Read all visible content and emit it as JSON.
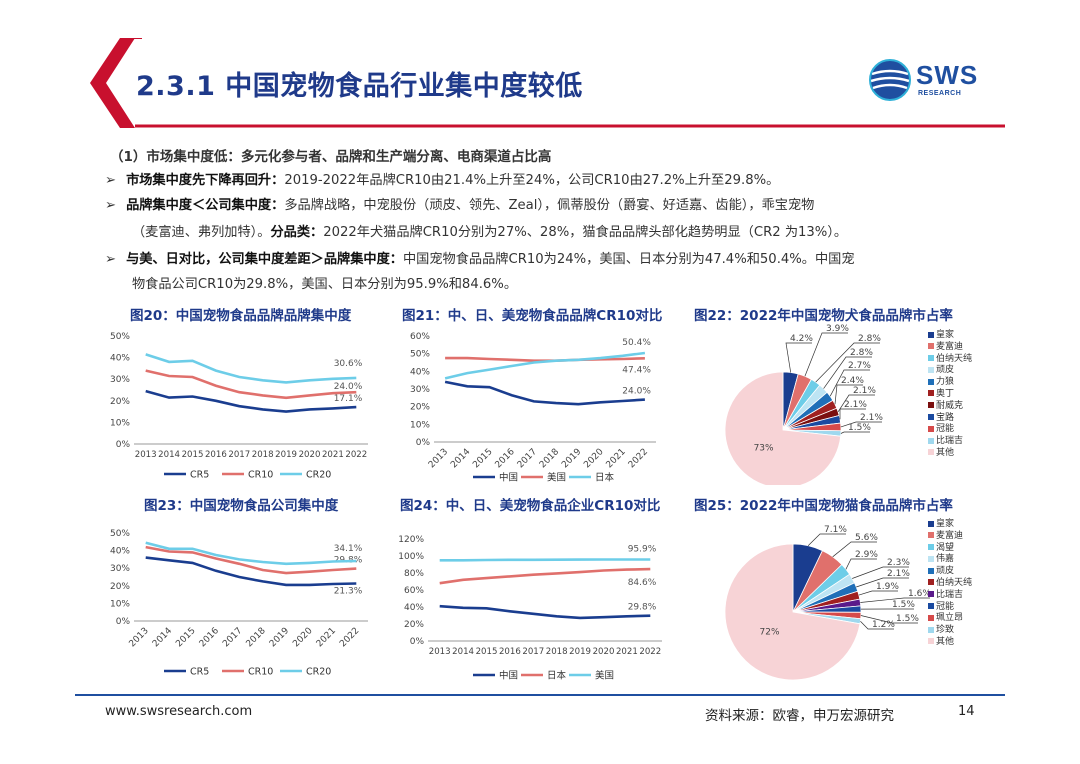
{
  "header": {
    "title": "2.3.1 中国宠物食品行业集中度较低",
    "logo": {
      "name": "SWS",
      "sub": "RESEARCH"
    },
    "colors": {
      "red": "#c8102e",
      "blue": "#1f4fa0",
      "title": "#1f3a8a"
    }
  },
  "body": {
    "section_title": "（1）市场集中度低：多元化参与者、品牌和生产端分离、电商渠道占比高",
    "bullets": [
      {
        "bold": "市场集中度先下降再回升：",
        "text": "2019-2022年品牌CR10由21.4%上升至24%，公司CR10由27.2%上升至29.8%。"
      },
      {
        "bold": "品牌集中度＜公司集中度：",
        "text": "多品牌战略，中宠股份（顽皮、领先、Zeal），佩蒂股份（爵宴、好适嘉、齿能），乖宝宠物"
      },
      {
        "bold": "",
        "text": "（麦富迪、弗列加特）。",
        "bold2": "分品类：",
        "text2": "2022年犬猫品牌CR10分别为27%、28%，猫食品品牌头部化趋势明显（CR2 为13%）。"
      },
      {
        "bold": "与美、日对比，公司集中度差距＞品牌集中度：",
        "text": "中国宠物食品品牌CR10为24%，美国、日本分别为47.4%和50.4%。中国宠"
      },
      {
        "bold": "",
        "text": "物食品公司CR10为29.8%，美国、日本分别为95.9%和84.6%。"
      }
    ]
  },
  "footer": {
    "url": "www.swsresearch.com",
    "source": "资料来源：欧睿，申万宏源研究",
    "page": "14"
  },
  "chart_data": [
    {
      "id": "fig20",
      "type": "line",
      "title": "图20：中国宠物食品品牌品牌集中度",
      "x": [
        "2013",
        "2014",
        "2015",
        "2016",
        "2017",
        "2018",
        "2019",
        "2020",
        "2021",
        "2022"
      ],
      "ylim": [
        0,
        50
      ],
      "yticks": [
        "0%",
        "10%",
        "20%",
        "30%",
        "40%",
        "50%"
      ],
      "xlabel_rotate": false,
      "series": [
        {
          "name": "CR5",
          "color": "#1a3d8f",
          "values": [
            24.5,
            21.5,
            22,
            20,
            17.5,
            16,
            15,
            16,
            16.5,
            17.1
          ]
        },
        {
          "name": "CR10",
          "color": "#e0706c",
          "values": [
            34,
            31.5,
            31,
            27,
            24,
            22.5,
            21.4,
            22.5,
            23.5,
            24.0
          ]
        },
        {
          "name": "CR20",
          "color": "#6dcde8",
          "values": [
            41.5,
            38,
            38.5,
            34,
            31,
            29.5,
            28.5,
            29.5,
            30.2,
            30.6
          ]
        }
      ],
      "end_labels": [
        "17.1%",
        "24.0%",
        "30.6%"
      ]
    },
    {
      "id": "fig21",
      "type": "line",
      "title": "图21：中、日、美宠物食品品牌CR10对比",
      "x": [
        "2013",
        "2014",
        "2015",
        "2016",
        "2017",
        "2018",
        "2019",
        "2020",
        "2021",
        "2022"
      ],
      "ylim": [
        0,
        60
      ],
      "yticks": [
        "0%",
        "10%",
        "20%",
        "30%",
        "40%",
        "50%",
        "60%"
      ],
      "xlabel_rotate": true,
      "series": [
        {
          "name": "中国",
          "color": "#1a3d8f",
          "values": [
            34,
            31.5,
            31,
            26.5,
            23,
            22,
            21.4,
            22.5,
            23.2,
            24.0
          ]
        },
        {
          "name": "美国",
          "color": "#e0706c",
          "values": [
            47.5,
            47.5,
            47,
            46.5,
            46,
            46,
            46.5,
            46.8,
            47,
            47.4
          ]
        },
        {
          "name": "日本",
          "color": "#6dcde8",
          "values": [
            36,
            39,
            41,
            43,
            45,
            46,
            46.5,
            47.5,
            48.8,
            50.4
          ]
        }
      ],
      "end_labels": [
        "24.0%",
        "47.4%",
        "50.4%"
      ]
    },
    {
      "id": "fig23",
      "type": "line",
      "title": "图23：中国宠物食品公司集中度",
      "x": [
        "2013",
        "2014",
        "2015",
        "2016",
        "2017",
        "2018",
        "2019",
        "2020",
        "2021",
        "2022"
      ],
      "ylim": [
        0,
        50
      ],
      "yticks": [
        "0%",
        "10%",
        "20%",
        "30%",
        "40%",
        "50%"
      ],
      "xlabel_rotate": true,
      "series": [
        {
          "name": "CR5",
          "color": "#1a3d8f",
          "values": [
            36,
            34.5,
            33,
            28.5,
            25,
            22.5,
            20.5,
            20.5,
            21,
            21.3
          ]
        },
        {
          "name": "CR10",
          "color": "#e0706c",
          "values": [
            42,
            39.5,
            39,
            35.5,
            32.5,
            29,
            27.2,
            28,
            29,
            29.8
          ]
        },
        {
          "name": "CR20",
          "color": "#6dcde8",
          "values": [
            44.5,
            41,
            41,
            37.5,
            35,
            33.5,
            32.5,
            33,
            33.8,
            34.1
          ]
        }
      ],
      "end_labels": [
        "21.3%",
        "29.8%",
        "34.1%"
      ]
    },
    {
      "id": "fig24",
      "type": "line",
      "title": "图24：中、日、美宠物食品企业CR10对比",
      "x": [
        "2013",
        "2014",
        "2015",
        "2016",
        "2017",
        "2018",
        "2019",
        "2020",
        "2021",
        "2022"
      ],
      "ylim": [
        0,
        120
      ],
      "yticks": [
        "0%",
        "20%",
        "40%",
        "60%",
        "80%",
        "100%",
        "120%"
      ],
      "xlabel_rotate": false,
      "series": [
        {
          "name": "中国",
          "color": "#1a3d8f",
          "values": [
            41,
            39,
            38.5,
            35,
            32,
            29,
            27.2,
            28,
            29,
            29.8
          ]
        },
        {
          "name": "日本",
          "color": "#e0706c",
          "values": [
            68,
            72,
            74,
            76,
            78,
            79.5,
            81,
            83,
            84,
            84.6
          ]
        },
        {
          "name": "美国",
          "color": "#6dcde8",
          "values": [
            95,
            95,
            95.3,
            95.5,
            95.5,
            95.6,
            95.8,
            95.9,
            95.9,
            95.9
          ]
        }
      ],
      "end_labels": [
        "29.8%",
        "84.6%",
        "95.9%"
      ]
    },
    {
      "id": "fig22",
      "type": "pie",
      "title": "图22：2022年中国宠物犬食品品牌市占率",
      "labels": [
        "皇家",
        "麦富迪",
        "伯纳天纯",
        "顽皮",
        "力狼",
        "奥丁",
        "耐威克",
        "宝路",
        "冠能",
        "比瑞吉",
        "其他"
      ],
      "values": [
        4.2,
        3.9,
        2.8,
        2.8,
        2.7,
        2.4,
        2.1,
        2.1,
        2.1,
        1.5,
        73
      ],
      "value_labels": [
        "4.2%",
        "3.9%",
        "2.8%",
        "2.8%",
        "2.7%",
        "2.4%",
        "2.1%",
        "2.1%",
        "2.1%",
        "1.5%",
        "73%"
      ],
      "colors": [
        "#1a3d8f",
        "#e0706c",
        "#6dcde8",
        "#bde4f3",
        "#1f6fb8",
        "#a02020",
        "#7a0f0f",
        "#1a4aa0",
        "#d64a4a",
        "#9fd8ee",
        "#f7d3d6"
      ]
    },
    {
      "id": "fig25",
      "type": "pie",
      "title": "图25：2022年中国宠物猫食品品牌市占率",
      "labels": [
        "皇家",
        "麦富迪",
        "渴望",
        "伟嘉",
        "顽皮",
        "伯纳天纯",
        "比瑞吉",
        "冠能",
        "珮立昂",
        "珍致",
        "其他"
      ],
      "values": [
        7.1,
        5.6,
        2.9,
        2.3,
        2.1,
        1.9,
        1.6,
        1.5,
        1.5,
        1.2,
        72
      ],
      "value_labels": [
        "7.1%",
        "5.6%",
        "2.9%",
        "2.3%",
        "2.1%",
        "1.9%",
        "1.6%",
        "1.5%",
        "1.5%",
        "1.2%",
        "72%"
      ],
      "colors": [
        "#1a3d8f",
        "#e0706c",
        "#6dcde8",
        "#bde4f3",
        "#1f6fb8",
        "#a02020",
        "#5a1a8a",
        "#1a4aa0",
        "#d64a4a",
        "#9fd8ee",
        "#f7d3d6"
      ]
    }
  ]
}
